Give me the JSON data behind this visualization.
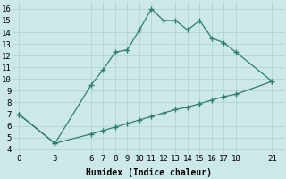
{
  "line1_x": [
    0,
    3,
    6,
    7,
    8,
    9,
    10,
    11,
    12,
    13,
    14,
    15,
    16,
    17,
    18,
    21
  ],
  "line1_y": [
    7.0,
    4.5,
    9.5,
    10.8,
    12.3,
    12.5,
    14.2,
    16.0,
    15.0,
    15.0,
    14.2,
    15.0,
    13.5,
    13.1,
    12.3,
    9.8
  ],
  "line2_x": [
    0,
    3,
    6,
    7,
    8,
    9,
    10,
    11,
    12,
    13,
    14,
    15,
    16,
    17,
    18,
    21
  ],
  "line2_y": [
    7.0,
    4.5,
    5.3,
    5.6,
    5.9,
    6.2,
    6.5,
    6.8,
    7.1,
    7.4,
    7.6,
    7.9,
    8.2,
    8.5,
    8.7,
    9.8
  ],
  "line_color": "#2e7d6e",
  "bg_color": "#cde8e8",
  "grid_color": "#afd4d4",
  "xlabel": "Humidex (Indice chaleur)",
  "xticks": [
    0,
    3,
    6,
    7,
    8,
    9,
    10,
    11,
    12,
    13,
    14,
    15,
    16,
    17,
    18,
    21
  ],
  "yticks": [
    4,
    5,
    6,
    7,
    8,
    9,
    10,
    11,
    12,
    13,
    14,
    15,
    16
  ],
  "xlim": [
    -0.5,
    22
  ],
  "ylim": [
    3.6,
    16.6
  ],
  "marker": "+",
  "markersize": 4,
  "markeredgewidth": 1.0,
  "linewidth": 0.9,
  "font_size": 6.5,
  "xlabel_fontsize": 7.0
}
